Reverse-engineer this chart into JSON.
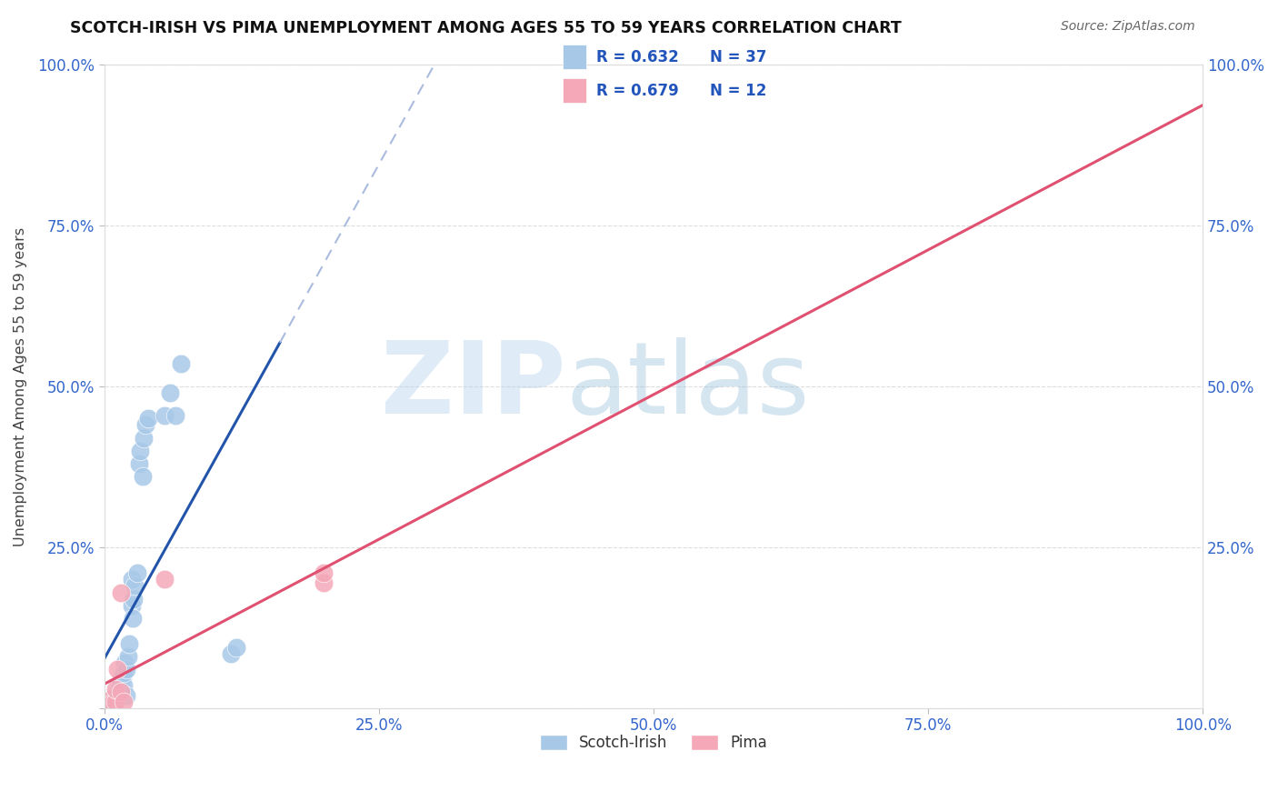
{
  "title": "SCOTCH-IRISH VS PIMA UNEMPLOYMENT AMONG AGES 55 TO 59 YEARS CORRELATION CHART",
  "source": "Source: ZipAtlas.com",
  "ylabel": "Unemployment Among Ages 55 to 59 years",
  "xlim": [
    0.0,
    1.0
  ],
  "ylim": [
    0.0,
    1.0
  ],
  "xtick_labels": [
    "0.0%",
    "25.0%",
    "50.0%",
    "75.0%",
    "100.0%"
  ],
  "xtick_vals": [
    0.0,
    0.25,
    0.5,
    0.75,
    1.0
  ],
  "ytick_labels": [
    "",
    "25.0%",
    "50.0%",
    "75.0%",
    "100.0%"
  ],
  "ytick_vals": [
    0.0,
    0.25,
    0.5,
    0.75,
    1.0
  ],
  "scotch_irish_R": 0.632,
  "scotch_irish_N": 37,
  "pima_R": 0.679,
  "pima_N": 12,
  "scotch_irish_color": "#a8c8e8",
  "scotch_irish_line_color": "#2255aa",
  "pima_color": "#f4a8b8",
  "pima_line_color": "#e05070",
  "legend_r_color": "#2255bb",
  "watermark_zip": "ZIP",
  "watermark_atlas": "atlas",
  "scotch_irish_x": [
    0.005,
    0.007,
    0.008,
    0.01,
    0.01,
    0.012,
    0.013,
    0.014,
    0.015,
    0.015,
    0.016,
    0.017,
    0.018,
    0.018,
    0.019,
    0.02,
    0.02,
    0.022,
    0.023,
    0.025,
    0.025,
    0.026,
    0.027,
    0.028,
    0.03,
    0.032,
    0.033,
    0.035,
    0.036,
    0.038,
    0.04,
    0.055,
    0.06,
    0.065,
    0.07,
    0.115,
    0.12
  ],
  "scotch_irish_y": [
    0.005,
    0.01,
    0.008,
    0.015,
    0.02,
    0.015,
    0.02,
    0.03,
    0.035,
    0.045,
    0.025,
    0.05,
    0.035,
    0.055,
    0.07,
    0.02,
    0.06,
    0.08,
    0.1,
    0.16,
    0.2,
    0.14,
    0.17,
    0.19,
    0.21,
    0.38,
    0.4,
    0.36,
    0.42,
    0.44,
    0.45,
    0.455,
    0.49,
    0.455,
    0.535,
    0.085,
    0.095
  ],
  "pima_x": [
    0.005,
    0.007,
    0.008,
    0.01,
    0.01,
    0.012,
    0.015,
    0.015,
    0.018,
    0.055,
    0.2,
    0.2
  ],
  "pima_y": [
    0.005,
    0.015,
    0.008,
    0.01,
    0.03,
    0.06,
    0.025,
    0.18,
    0.01,
    0.2,
    0.195,
    0.21
  ],
  "background_color": "#ffffff",
  "grid_color": "#cccccc"
}
